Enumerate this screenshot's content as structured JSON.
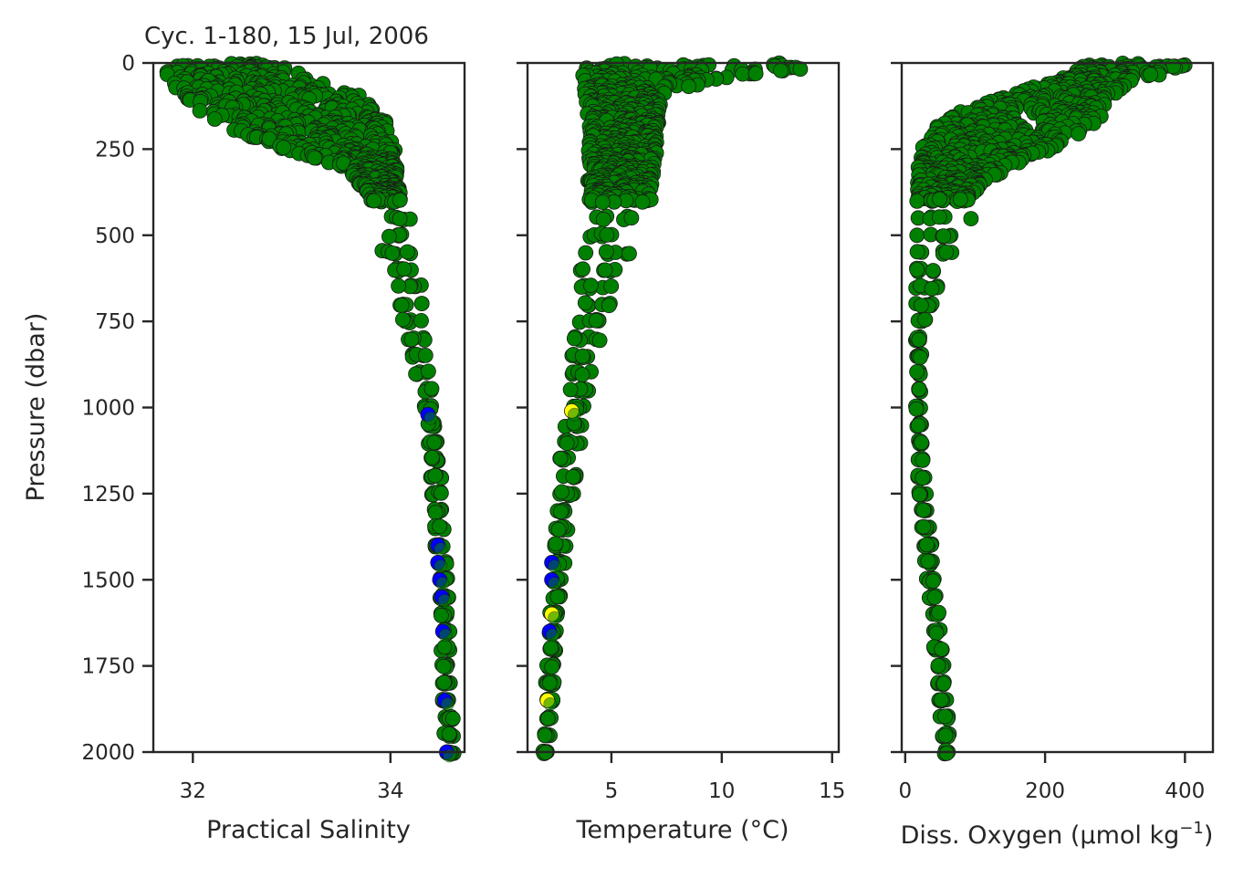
{
  "chart_data": [
    {
      "type": "scatter",
      "title": "Cyc. 1-180, 15 Jul, 2006",
      "xlabel": "Practical Salinity",
      "ylabel": "Pressure (dbar)",
      "xlim": [
        31.6,
        34.75
      ],
      "ylim": [
        2000,
        0
      ],
      "y_inverted": true,
      "xticks": [
        32,
        34
      ],
      "xtick_labels": [
        "32",
        "34"
      ],
      "yticks": [
        0,
        250,
        500,
        750,
        1000,
        1250,
        1500,
        1750,
        2000
      ],
      "ytick_labels": [
        "0",
        "250",
        "500",
        "750",
        "1000",
        "1250",
        "1500",
        "1750",
        "2000"
      ],
      "grid": false,
      "marker_colors": {
        "good": "#008000",
        "flag_probably_good": "#0000ff",
        "edge": "#1a1a1a"
      },
      "profile_envelope": {
        "pressure": [
          0,
          60,
          100,
          150,
          200,
          250,
          300,
          400,
          450,
          500,
          600,
          700,
          800,
          900,
          1000,
          1200,
          1400,
          1600,
          1800,
          2000
        ],
        "min": [
          31.7,
          31.75,
          31.9,
          32.1,
          32.45,
          32.9,
          33.55,
          33.8,
          33.85,
          33.88,
          33.95,
          34.05,
          34.15,
          34.25,
          34.33,
          34.4,
          34.45,
          34.5,
          34.52,
          34.55
        ],
        "max": [
          32.85,
          33.3,
          33.75,
          33.95,
          34.02,
          34.05,
          34.08,
          34.1,
          34.2,
          34.25,
          34.3,
          34.33,
          34.35,
          34.4,
          34.45,
          34.52,
          34.56,
          34.6,
          34.62,
          34.65
        ]
      },
      "flagged_points": [
        {
          "x": 34.38,
          "y": 1020,
          "flag": "blue"
        },
        {
          "x": 34.48,
          "y": 1400,
          "flag": "blue"
        },
        {
          "x": 34.48,
          "y": 1450,
          "flag": "blue"
        },
        {
          "x": 34.5,
          "y": 1500,
          "flag": "blue"
        },
        {
          "x": 34.52,
          "y": 1550,
          "flag": "blue"
        },
        {
          "x": 34.53,
          "y": 1650,
          "flag": "blue"
        },
        {
          "x": 34.55,
          "y": 1850,
          "flag": "blue"
        },
        {
          "x": 34.57,
          "y": 2000,
          "flag": "blue"
        }
      ]
    },
    {
      "type": "scatter",
      "xlabel": "Temperature (°C)",
      "xlim": [
        1.2,
        15.3
      ],
      "ylim": [
        2000,
        0
      ],
      "y_inverted": true,
      "xticks": [
        5,
        10,
        15
      ],
      "xtick_labels": [
        "5",
        "10",
        "15"
      ],
      "yticks": [
        0,
        250,
        500,
        750,
        1000,
        1250,
        1500,
        1750,
        2000
      ],
      "ytick_labels_shown": false,
      "grid": false,
      "marker_colors": {
        "good": "#008000",
        "flag_probably_good": "#0000ff",
        "flag_yellow": "#ffff00",
        "edge": "#1a1a1a"
      },
      "profile_envelope": {
        "pressure": [
          0,
          20,
          40,
          60,
          80,
          100,
          150,
          200,
          300,
          400,
          450,
          500,
          600,
          700,
          800,
          900,
          1000,
          1200,
          1400,
          1600,
          1800,
          2000
        ],
        "min": [
          3.7,
          3.7,
          3.7,
          3.75,
          3.8,
          3.8,
          3.9,
          3.95,
          3.95,
          3.9,
          3.8,
          3.75,
          3.6,
          3.4,
          3.2,
          3.0,
          2.9,
          2.6,
          2.4,
          2.2,
          2.0,
          1.9
        ],
        "max": [
          14.8,
          13.5,
          11.0,
          9.0,
          7.5,
          7.3,
          7.2,
          7.1,
          7.0,
          6.8,
          6.5,
          6.2,
          5.6,
          5.0,
          4.6,
          4.2,
          3.8,
          3.4,
          3.0,
          2.6,
          2.4,
          2.2
        ]
      },
      "flagged_points": [
        {
          "x": 3.2,
          "y": 1010,
          "flag": "yellow"
        },
        {
          "x": 2.3,
          "y": 1450,
          "flag": "blue"
        },
        {
          "x": 2.3,
          "y": 1500,
          "flag": "blue"
        },
        {
          "x": 2.3,
          "y": 1600,
          "flag": "yellow"
        },
        {
          "x": 2.2,
          "y": 1650,
          "flag": "blue"
        },
        {
          "x": 2.1,
          "y": 1850,
          "flag": "yellow"
        }
      ]
    },
    {
      "type": "scatter",
      "xlabel": "Diss. Oxygen (μmol kg",
      "xlabel_sup": "−1",
      "xlabel_tail": ")",
      "xlim": [
        -5,
        440
      ],
      "ylim": [
        2000,
        0
      ],
      "y_inverted": true,
      "xticks": [
        0,
        200,
        400
      ],
      "xtick_labels": [
        "0",
        "200",
        "400"
      ],
      "yticks": [
        0,
        250,
        500,
        750,
        1000,
        1250,
        1500,
        1750,
        2000
      ],
      "ytick_labels_shown": false,
      "grid": false,
      "marker_colors": {
        "good": "#008000",
        "edge": "#1a1a1a"
      },
      "profile_envelope": {
        "pressure": [
          0,
          50,
          100,
          150,
          200,
          250,
          300,
          350,
          400,
          450,
          500,
          600,
          700,
          800,
          1000,
          1200,
          1400,
          1600,
          1800,
          2000
        ],
        "min": [
          260,
          220,
          140,
          70,
          35,
          22,
          18,
          17,
          16,
          15,
          15,
          15,
          15,
          15,
          15,
          18,
          25,
          35,
          45,
          55
        ],
        "max": [
          420,
          330,
          290,
          280,
          260,
          210,
          150,
          110,
          95,
          95,
          80,
          65,
          40,
          25,
          22,
          28,
          38,
          48,
          58,
          65
        ]
      }
    }
  ]
}
